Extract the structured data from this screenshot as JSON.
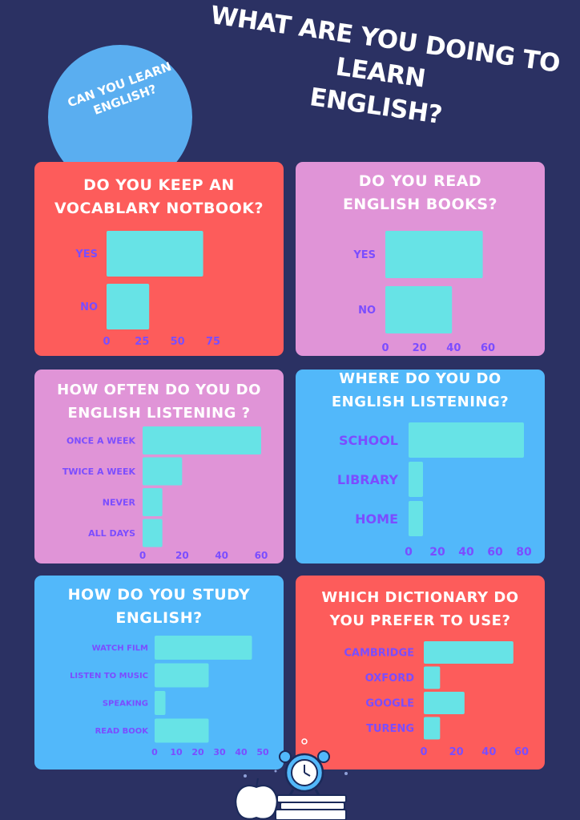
{
  "page": {
    "title_lines": [
      "WHAT ARE YOU DOING TO LEARN",
      "ENGLISH?"
    ],
    "circle_lines": [
      "CAN YOU LEARN",
      "ENGLISH?"
    ]
  },
  "colors": {
    "background": "#2b3163",
    "red": "#fd5c5b",
    "pink": "#e094d7",
    "blue": "#52b8fa",
    "bar": "#67e3e6",
    "label": "#7b4dff"
  },
  "chart_data": [
    {
      "type": "bar",
      "orientation": "horizontal",
      "title_lines": [
        "DO YOU KEEP AN",
        "VOCABLARY NOTBOOK?"
      ],
      "categories": [
        "YES",
        "NO"
      ],
      "values": [
        68,
        30
      ],
      "xlim": [
        0,
        75
      ],
      "xticks": [
        "0",
        "25",
        "50",
        "75"
      ]
    },
    {
      "type": "bar",
      "orientation": "horizontal",
      "title_lines": [
        "DO YOU READ",
        "ENGLISH BOOKS?"
      ],
      "categories": [
        "YES",
        "NO"
      ],
      "values": [
        57,
        39
      ],
      "xlim": [
        0,
        60
      ],
      "xticks": [
        "0",
        "20",
        "40",
        "60"
      ]
    },
    {
      "type": "bar",
      "orientation": "horizontal",
      "title_lines": [
        "HOW OFTEN DO YOU DO",
        "ENGLISH LISTENING ?"
      ],
      "categories": [
        "ONCE A WEEK",
        "TWICE A WEEK",
        "NEVER",
        "ALL DAYS"
      ],
      "values": [
        60,
        20,
        10,
        10
      ],
      "xlim": [
        0,
        60
      ],
      "xticks": [
        "0",
        "20",
        "40",
        "60"
      ]
    },
    {
      "type": "bar",
      "orientation": "horizontal",
      "title_lines": [
        "WHERE DO YOU DO",
        "ENGLISH LISTENING?"
      ],
      "categories": [
        "SCHOOL",
        "LIBRARY",
        "HOME"
      ],
      "values": [
        80,
        10,
        10
      ],
      "xlim": [
        0,
        80
      ],
      "xticks": [
        "0",
        "20",
        "40",
        "60",
        "80"
      ]
    },
    {
      "type": "bar",
      "orientation": "horizontal",
      "title_lines": [
        "HOW DO YOU STUDY",
        "ENGLISH?"
      ],
      "categories": [
        "WATCH FILM",
        "LISTEN TO MUSIC",
        "SPEAKING",
        "READ BOOK"
      ],
      "values": [
        45,
        25,
        5,
        25
      ],
      "xlim": [
        0,
        50
      ],
      "xticks": [
        "0",
        "10",
        "20",
        "30",
        "40",
        "50"
      ]
    },
    {
      "type": "bar",
      "orientation": "horizontal",
      "title_lines": [
        "WHICH DICTIONARY DO",
        "YOU PREFER TO USE?"
      ],
      "categories": [
        "CAMBRIDGE",
        "OXFORD",
        "GOOGLE",
        "TURENG"
      ],
      "values": [
        55,
        10,
        25,
        10
      ],
      "xlim": [
        0,
        60
      ],
      "xticks": [
        "0",
        "20",
        "40",
        "60"
      ]
    }
  ]
}
